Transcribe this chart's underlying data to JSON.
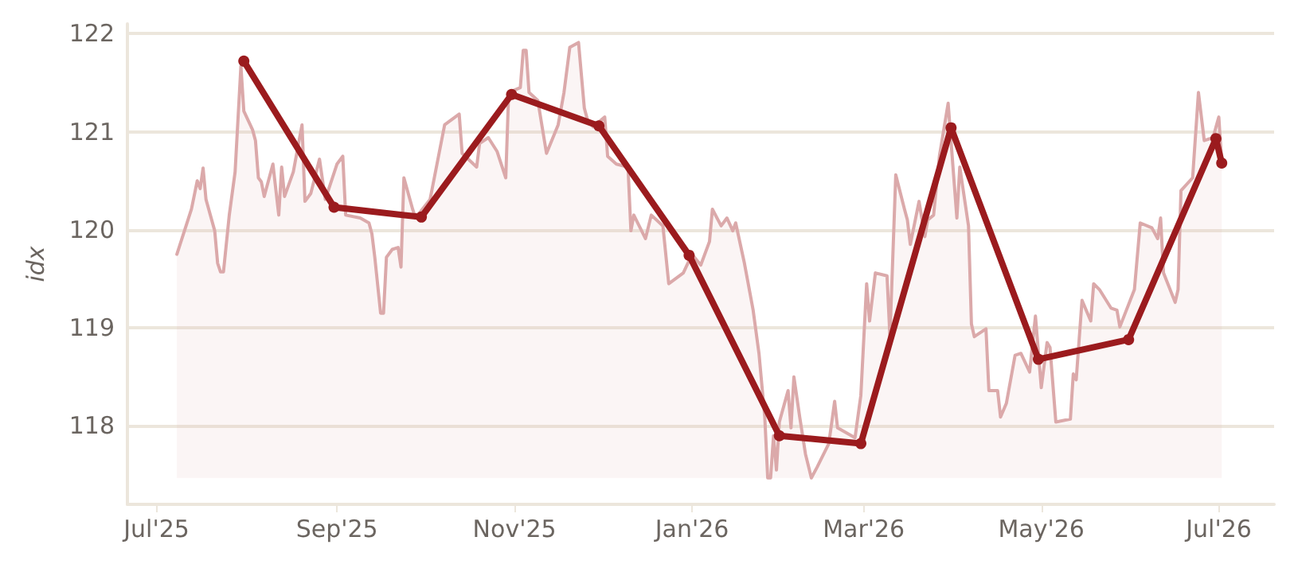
{
  "chart_data": {
    "type": "line",
    "ylabel": "idx",
    "xlim": [
      "2025-06-21",
      "2026-07-20"
    ],
    "ylim": [
      117.2,
      122.1
    ],
    "xticks": [
      {
        "value": "2025-07-01",
        "label": "Jul'25"
      },
      {
        "value": "2025-09-01",
        "label": "Sep'25"
      },
      {
        "value": "2025-11-01",
        "label": "Nov'25"
      },
      {
        "value": "2026-01-01",
        "label": "Jan'26"
      },
      {
        "value": "2026-03-01",
        "label": "Mar'26"
      },
      {
        "value": "2026-05-01",
        "label": "May'26"
      },
      {
        "value": "2026-07-01",
        "label": "Jul'26"
      }
    ],
    "yticks": [
      118,
      119,
      120,
      121,
      122
    ],
    "grid": "y",
    "series": [
      {
        "type": "area",
        "color": "#dba9aa",
        "marker": "none",
        "x": [
          "2025-07-08",
          "2025-07-13",
          "2025-07-15",
          "2025-07-16",
          "2025-07-17",
          "2025-07-18",
          "2025-07-21",
          "2025-07-22",
          "2025-07-23",
          "2025-07-24",
          "2025-07-26",
          "2025-07-28",
          "2025-07-30",
          "2025-07-31",
          "2025-08-03",
          "2025-08-04",
          "2025-08-05",
          "2025-08-06",
          "2025-08-07",
          "2025-08-10",
          "2025-08-12",
          "2025-08-13",
          "2025-08-14",
          "2025-08-17",
          "2025-08-20",
          "2025-08-21",
          "2025-08-23",
          "2025-08-26",
          "2025-08-28",
          "2025-09-01",
          "2025-09-03",
          "2025-09-04",
          "2025-09-09",
          "2025-09-12",
          "2025-09-13",
          "2025-09-14",
          "2025-09-16",
          "2025-09-17",
          "2025-09-18",
          "2025-09-20",
          "2025-09-22",
          "2025-09-23",
          "2025-09-24",
          "2025-09-27",
          "2025-09-28",
          "2025-10-03",
          "2025-10-08",
          "2025-10-13",
          "2025-10-14",
          "2025-10-19",
          "2025-10-20",
          "2025-10-23",
          "2025-10-26",
          "2025-10-29",
          "2025-10-30",
          "2025-11-03",
          "2025-11-04",
          "2025-11-05",
          "2025-11-06",
          "2025-11-09",
          "2025-11-12",
          "2025-11-16",
          "2025-11-18",
          "2025-11-20",
          "2025-11-23",
          "2025-11-25",
          "2025-11-26",
          "2025-11-28",
          "2025-12-02",
          "2025-12-03",
          "2025-12-06",
          "2025-12-10",
          "2025-12-11",
          "2025-12-12",
          "2025-12-16",
          "2025-12-18",
          "2025-12-22",
          "2025-12-24",
          "2025-12-29",
          "2026-01-01",
          "2026-01-04",
          "2026-01-07",
          "2026-01-08",
          "2026-01-11",
          "2026-01-13",
          "2026-01-15",
          "2026-01-16",
          "2026-01-19",
          "2026-01-22",
          "2026-01-24",
          "2026-01-26",
          "2026-01-27",
          "2026-01-28",
          "2026-01-29",
          "2026-01-30",
          "2026-01-31",
          "2026-02-03",
          "2026-02-04",
          "2026-02-05",
          "2026-02-07",
          "2026-02-09",
          "2026-02-11",
          "2026-02-13",
          "2026-02-17",
          "2026-02-19",
          "2026-02-20",
          "2026-02-26",
          "2026-02-28",
          "2026-03-02",
          "2026-03-03",
          "2026-03-05",
          "2026-03-09",
          "2026-03-10",
          "2026-03-12",
          "2026-03-15",
          "2026-03-16",
          "2026-03-17",
          "2026-03-20",
          "2026-03-22",
          "2026-03-23",
          "2026-03-25",
          "2026-03-27",
          "2026-03-30",
          "2026-04-02",
          "2026-04-03",
          "2026-04-06",
          "2026-04-07",
          "2026-04-08",
          "2026-04-12",
          "2026-04-13",
          "2026-04-16",
          "2026-04-17",
          "2026-04-19",
          "2026-04-22",
          "2026-04-24",
          "2026-04-27",
          "2026-04-29",
          "2026-05-01",
          "2026-05-03",
          "2026-05-04",
          "2026-05-06",
          "2026-05-11",
          "2026-05-12",
          "2026-05-13",
          "2026-05-15",
          "2026-05-18",
          "2026-05-19",
          "2026-05-21",
          "2026-05-25",
          "2026-05-27",
          "2026-05-28",
          "2026-06-02",
          "2026-06-04",
          "2026-06-08",
          "2026-06-10",
          "2026-06-11",
          "2026-06-12",
          "2026-06-16",
          "2026-06-17",
          "2026-06-18",
          "2026-06-22",
          "2026-06-24",
          "2026-06-26",
          "2026-06-29",
          "2026-07-01",
          "2026-07-02"
        ],
        "values": [
          119.75,
          120.21,
          120.5,
          120.42,
          120.63,
          120.31,
          119.99,
          119.66,
          119.57,
          119.57,
          120.15,
          120.59,
          121.67,
          121.21,
          121.02,
          120.91,
          120.53,
          120.49,
          120.34,
          120.67,
          120.15,
          120.64,
          120.34,
          120.59,
          121.07,
          120.29,
          120.37,
          120.72,
          120.31,
          120.67,
          120.75,
          120.15,
          120.12,
          120.07,
          119.96,
          119.72,
          119.15,
          119.15,
          119.72,
          119.8,
          119.82,
          119.62,
          120.53,
          120.21,
          120.12,
          120.31,
          121.07,
          121.18,
          120.78,
          120.64,
          120.88,
          120.94,
          120.8,
          120.53,
          121.4,
          121.45,
          121.83,
          121.83,
          121.4,
          121.32,
          120.78,
          121.07,
          121.4,
          121.86,
          121.91,
          121.24,
          121.13,
          121.05,
          121.15,
          120.75,
          120.67,
          120.64,
          119.99,
          120.15,
          119.91,
          120.15,
          120.04,
          119.45,
          119.56,
          119.75,
          119.64,
          119.88,
          120.21,
          120.04,
          120.12,
          119.99,
          120.07,
          119.66,
          119.18,
          118.74,
          118.09,
          117.47,
          117.47,
          117.9,
          117.55,
          118.04,
          118.36,
          117.98,
          118.5,
          118.09,
          117.71,
          117.47,
          117.58,
          117.82,
          118.25,
          117.98,
          117.88,
          118.31,
          119.45,
          119.07,
          119.56,
          119.53,
          118.91,
          120.56,
          120.21,
          120.1,
          119.85,
          120.29,
          119.93,
          120.1,
          120.15,
          120.75,
          121.29,
          120.12,
          120.64,
          120.04,
          119.04,
          118.91,
          118.99,
          118.36,
          118.36,
          118.09,
          118.23,
          118.72,
          118.74,
          118.55,
          119.12,
          118.39,
          118.85,
          118.8,
          118.04,
          118.07,
          118.53,
          118.47,
          119.28,
          119.07,
          119.45,
          119.39,
          119.2,
          119.18,
          119.01,
          119.39,
          120.07,
          120.02,
          119.91,
          120.12,
          119.56,
          119.26,
          119.39,
          120.4,
          120.53,
          121.4,
          120.91,
          120.94,
          121.15,
          120.69
        ]
      },
      {
        "color": "#9b1b1e",
        "marker": "circle",
        "x": [
          "2025-07-31",
          "2025-08-31",
          "2025-09-30",
          "2025-10-31",
          "2025-11-30",
          "2025-12-31",
          "2026-01-31",
          "2026-02-28",
          "2026-03-31",
          "2026-04-30",
          "2026-05-31",
          "2026-06-30",
          "2026-07-02"
        ],
        "values": [
          121.72,
          120.23,
          120.13,
          121.38,
          121.06,
          119.74,
          117.9,
          117.82,
          121.04,
          118.68,
          118.88,
          120.93,
          120.68
        ]
      }
    ]
  }
}
